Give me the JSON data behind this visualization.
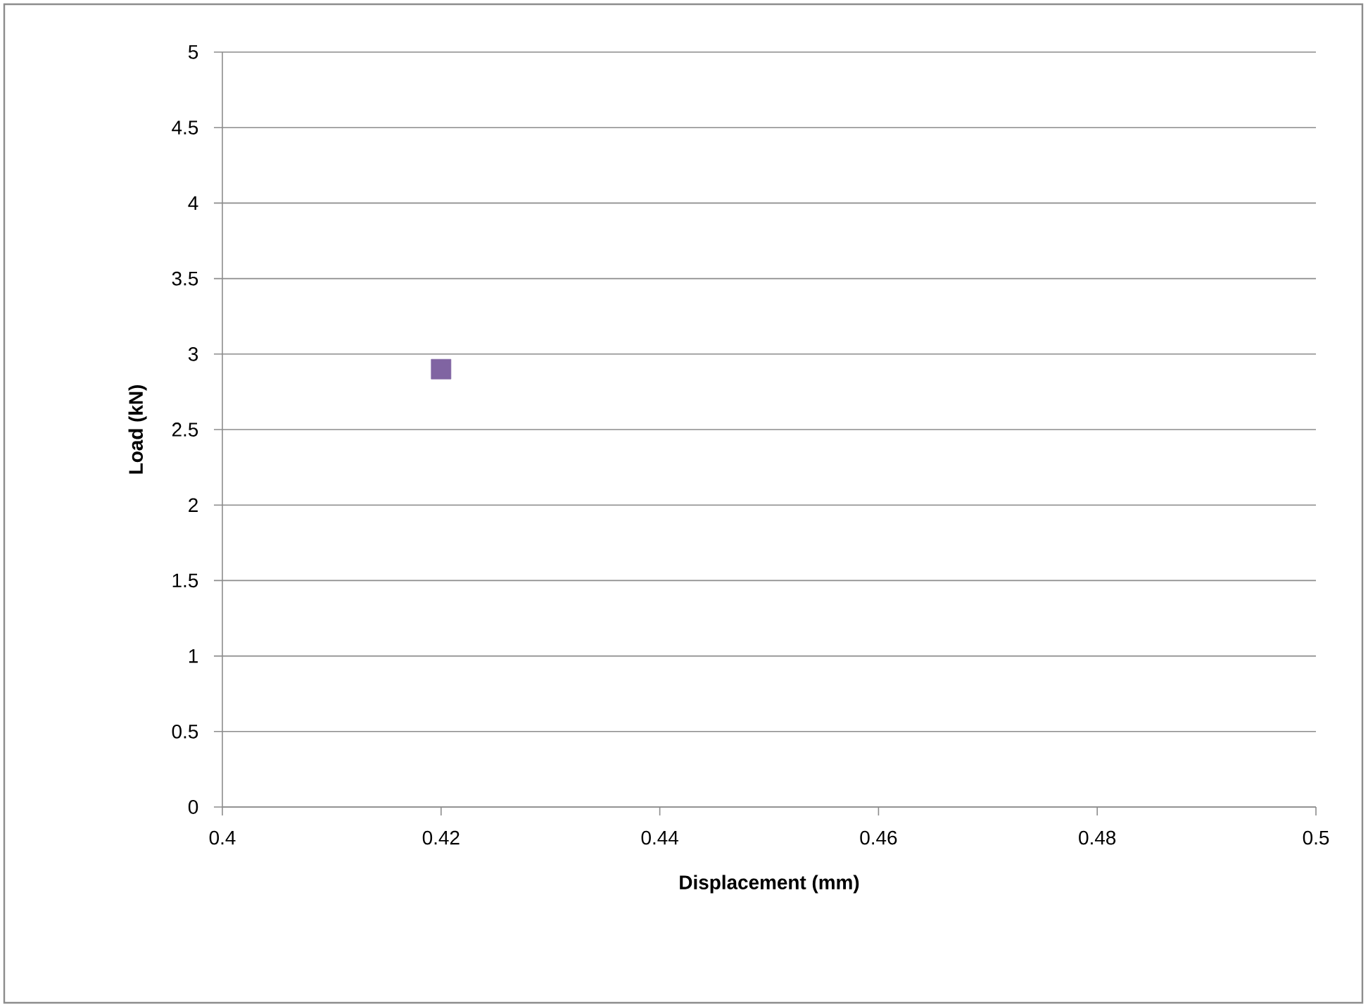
{
  "chart_data": {
    "type": "scatter",
    "xlabel": "Displacement (mm)",
    "ylabel": "Load (kN)",
    "series": [
      {
        "color": "#8064a2",
        "x": [
          0.42
        ],
        "values": [
          2.9
        ]
      }
    ],
    "xlim": [
      0.4,
      0.5
    ],
    "xticks": [
      0.4,
      0.42,
      0.44,
      0.46,
      0.48,
      0.5
    ],
    "ylim": [
      0,
      5
    ],
    "yticks": [
      0,
      0.5,
      1,
      1.5,
      2,
      2.5,
      3,
      3.5,
      4,
      4.5,
      5
    ],
    "grid": "y",
    "marker": "square"
  }
}
